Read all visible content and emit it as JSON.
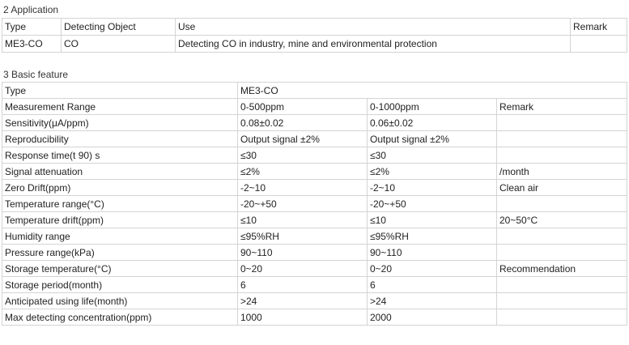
{
  "application": {
    "title": "2 Application",
    "headers": [
      "Type",
      "Detecting Object",
      "Use",
      "Remark"
    ],
    "rows": [
      [
        "ME3-CO",
        "CO",
        "Detecting CO in industry, mine and environmental protection",
        ""
      ]
    ]
  },
  "basic_feature": {
    "title": "3 Basic feature",
    "type_row": [
      "Type",
      "ME3-CO"
    ],
    "rows": [
      [
        "Measurement Range",
        "0-500ppm",
        "0-1000ppm",
        "Remark"
      ],
      [
        "Sensitivity(μA/ppm)",
        "0.08±0.02",
        "0.06±0.02",
        ""
      ],
      [
        "Reproducibility",
        "Output signal ±2%",
        "Output signal ±2%",
        ""
      ],
      [
        "Response time(t 90) s",
        "≤30",
        "≤30",
        ""
      ],
      [
        "Signal attenuation",
        "≤2%",
        "≤2%",
        "/month"
      ],
      [
        "Zero Drift(ppm)",
        "-2~10",
        "-2~10",
        "Clean air"
      ],
      [
        "Temperature range(°C)",
        "-20~+50",
        "-20~+50",
        ""
      ],
      [
        "Temperature drift(ppm)",
        "≤10",
        "≤10",
        "20~50°C"
      ],
      [
        "Humidity range",
        "≤95%RH",
        "≤95%RH",
        ""
      ],
      [
        "Pressure range(kPa)",
        "90~110",
        "90~110",
        ""
      ],
      [
        "Storage temperature(°C)",
        "0~20",
        "0~20",
        "Recommendation"
      ],
      [
        "Storage period(month)",
        "6",
        "6",
        ""
      ],
      [
        "Anticipated using life(month)",
        ">24",
        ">24",
        ""
      ],
      [
        "Max detecting concentration(ppm)",
        "1000",
        "2000",
        ""
      ]
    ]
  }
}
